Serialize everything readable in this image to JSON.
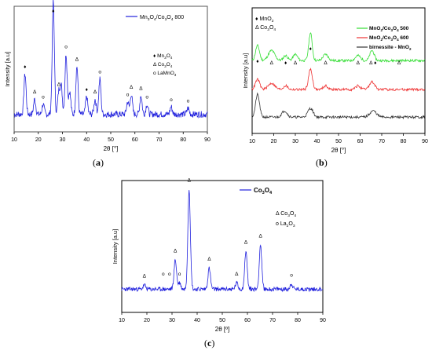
{
  "panels": [
    {
      "id": "a",
      "caption": "a",
      "xlabel": "2θ [°]",
      "ylabel": "Intensity [a.u]",
      "xlim": [
        10,
        90
      ],
      "xticks": [
        10,
        20,
        30,
        40,
        50,
        60,
        70,
        80,
        90
      ],
      "frame_color": "#555555",
      "series": [
        {
          "label_main": "Mn",
          "label_sub1": "3",
          "label_mid": "O",
          "label_sub2": "4",
          "label_rest": "/Co",
          "label_sub3": "3",
          "label_mid2": "O",
          "label_sub4": "4",
          "label_suffix": " 800",
          "color": "#2222dd"
        }
      ],
      "legend2": [
        {
          "marker": "♦",
          "text": "Mn",
          "sub": "3",
          "text2": "O",
          "sub2": "4"
        },
        {
          "marker": "Δ",
          "text": " Co",
          "sub": "3",
          "text2": "O",
          "sub2": "4"
        },
        {
          "marker": "o",
          "text": " LaMnO",
          "sub": "3",
          "text2": "",
          "sub2": ""
        }
      ],
      "peak_markers": [
        {
          "x": 14.5,
          "m": "♦"
        },
        {
          "x": 18.5,
          "m": "Δ"
        },
        {
          "x": 22,
          "m": "o"
        },
        {
          "x": 26.2,
          "m": "♦"
        },
        {
          "x": 28.5,
          "m": "Δ"
        },
        {
          "x": 31.5,
          "m": "o"
        },
        {
          "x": 36,
          "m": "Δ"
        },
        {
          "x": 40,
          "m": "♦"
        },
        {
          "x": 43.5,
          "m": "Δ"
        },
        {
          "x": 45.5,
          "m": "o"
        },
        {
          "x": 57,
          "m": "o"
        },
        {
          "x": 58.5,
          "m": "Δ"
        },
        {
          "x": 62.5,
          "m": "Δ"
        },
        {
          "x": 65,
          "m": "o"
        },
        {
          "x": 75,
          "m": "o"
        },
        {
          "x": 82,
          "m": "o"
        }
      ],
      "chart_data": {
        "type": "line",
        "xlim": [
          10,
          90
        ],
        "peaks": [
          [
            14.5,
            0.32
          ],
          [
            18.5,
            0.12
          ],
          [
            22,
            0.08
          ],
          [
            26.2,
            0.9
          ],
          [
            28.5,
            0.18
          ],
          [
            29.5,
            0.22
          ],
          [
            31.5,
            0.48
          ],
          [
            33,
            0.18
          ],
          [
            36,
            0.38
          ],
          [
            40,
            0.14
          ],
          [
            43.5,
            0.12
          ],
          [
            45.5,
            0.28
          ],
          [
            57,
            0.1
          ],
          [
            58.5,
            0.16
          ],
          [
            62.5,
            0.15
          ],
          [
            65,
            0.08
          ],
          [
            75,
            0.06
          ],
          [
            82,
            0.05
          ]
        ]
      }
    },
    {
      "id": "b",
      "caption": "b",
      "xlabel": "2θ [°]",
      "ylabel": "Intensity [a.u]",
      "xlim": [
        10,
        90
      ],
      "xticks": [
        10,
        20,
        30,
        40,
        50,
        60,
        70,
        80,
        90
      ],
      "legend_top": [
        {
          "marker": "♦",
          "text": " MnO",
          "sub": "2"
        },
        {
          "marker": "Δ",
          "text": " Co",
          "sub": "3",
          "text2": "O",
          "sub2": "4"
        }
      ],
      "series": [
        {
          "label": "MnO2/Co3O4 500",
          "color": "#33dd33"
        },
        {
          "label": "MnO2/Co3O4 600",
          "color": "#ee3333"
        },
        {
          "label": "birnessite - MnO2",
          "color": "#333333"
        }
      ],
      "peak_markers": [
        {
          "x": 12.5,
          "m": "♦"
        },
        {
          "x": 19,
          "m": "Δ"
        },
        {
          "x": 25.5,
          "m": "♦"
        },
        {
          "x": 30,
          "m": "Δ"
        },
        {
          "x": 37,
          "m": "♦"
        },
        {
          "x": 44,
          "m": "Δ"
        },
        {
          "x": 59,
          "m": "Δ"
        },
        {
          "x": 65,
          "m": "Δ"
        },
        {
          "x": 67,
          "m": "♦"
        },
        {
          "x": 78,
          "m": "Δ"
        }
      ],
      "chart_data": {
        "type": "line",
        "xlim": [
          10,
          90
        ],
        "series_names": [
          "MnO2/Co3O4 500",
          "MnO2/Co3O4 600",
          "birnessite - MnO2"
        ]
      }
    },
    {
      "id": "c",
      "caption": "c",
      "xlabel": "2θ [º]",
      "ylabel": "Intensity [a.u]",
      "xlim": [
        10,
        90
      ],
      "xticks": [
        10,
        20,
        30,
        40,
        50,
        60,
        70,
        80,
        90
      ],
      "series": [
        {
          "label": "Co3O4",
          "color": "#2222dd"
        }
      ],
      "legend2": [
        {
          "marker": "Δ",
          "text": " Co",
          "sub": "3",
          "text2": "O",
          "sub2": "4"
        },
        {
          "marker": "o",
          "text": " La",
          "sub": "2",
          "text2": "O",
          "sub2": "3"
        }
      ],
      "peak_markers": [
        {
          "x": 19,
          "m": "Δ"
        },
        {
          "x": 26.5,
          "m": "o"
        },
        {
          "x": 29,
          "m": "o"
        },
        {
          "x": 31.3,
          "m": "Δ"
        },
        {
          "x": 33,
          "m": "o"
        },
        {
          "x": 36.8,
          "m": "Δ"
        },
        {
          "x": 44.8,
          "m": "Δ"
        },
        {
          "x": 55.7,
          "m": "Δ"
        },
        {
          "x": 59.4,
          "m": "Δ"
        },
        {
          "x": 65.2,
          "m": "Δ"
        },
        {
          "x": 77.5,
          "m": "o"
        }
      ],
      "chart_data": {
        "type": "line",
        "xlim": [
          10,
          90
        ],
        "peaks": [
          [
            19,
            0.04
          ],
          [
            31.3,
            0.28
          ],
          [
            33,
            0.06
          ],
          [
            36.8,
            0.95
          ],
          [
            44.8,
            0.2
          ],
          [
            55.7,
            0.06
          ],
          [
            59.4,
            0.36
          ],
          [
            65.2,
            0.42
          ],
          [
            77.5,
            0.05
          ]
        ]
      }
    }
  ]
}
